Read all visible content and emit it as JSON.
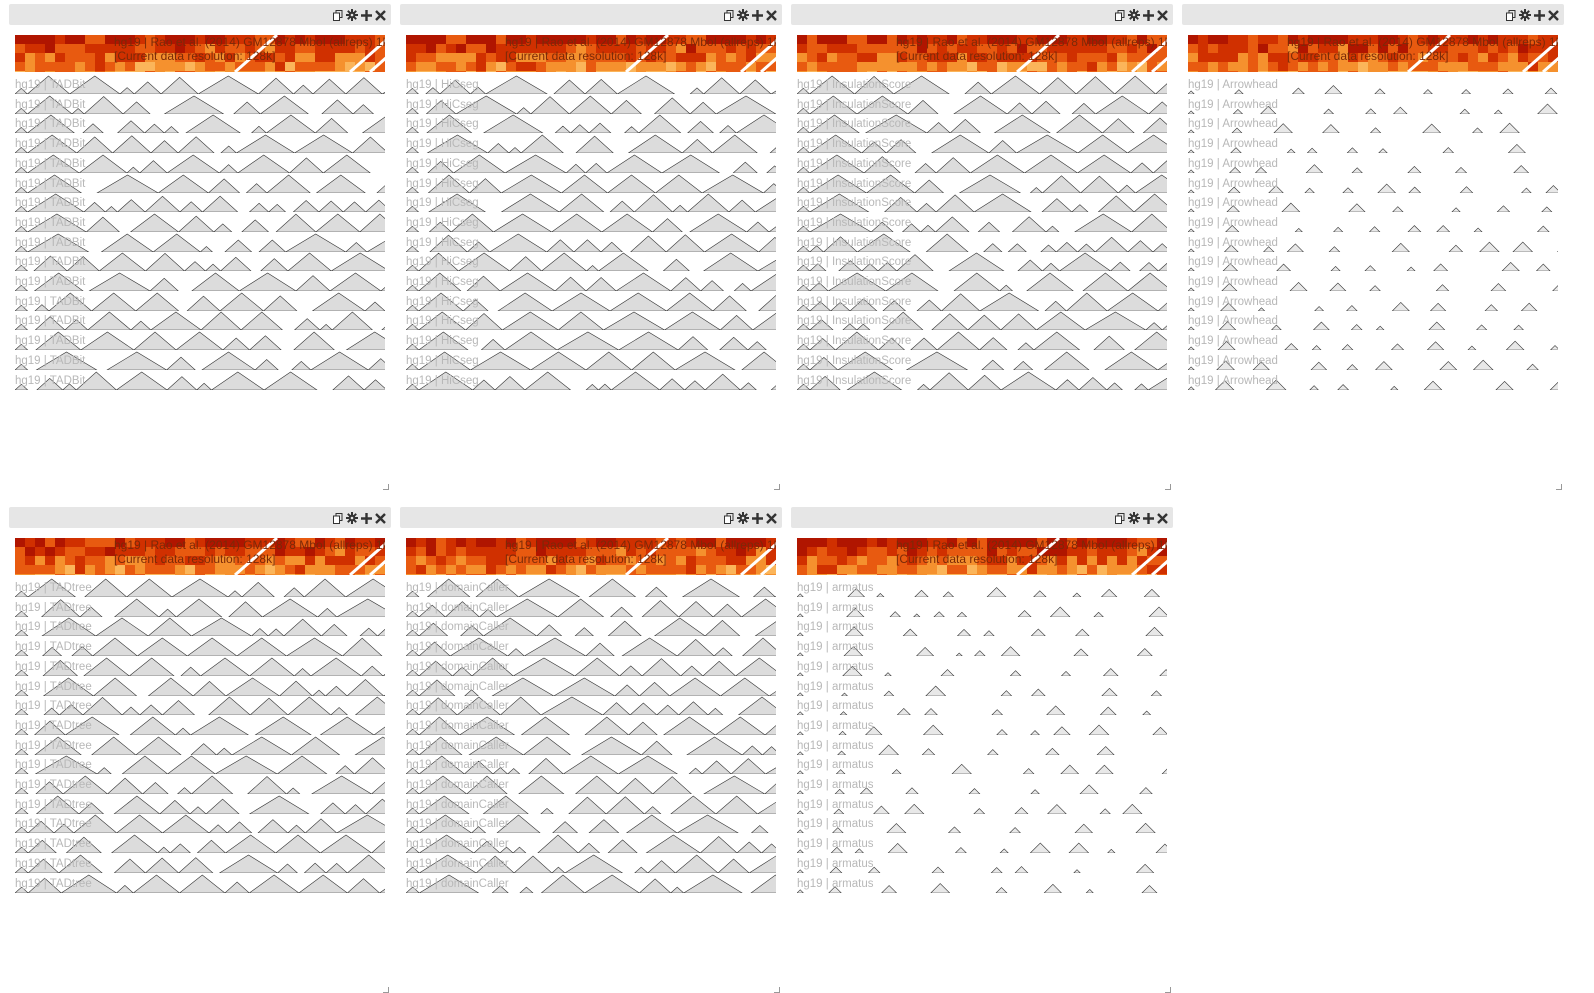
{
  "heatmap": {
    "title": "hg19 | Rao et al. (2014) GM12878 MboI (allreps) 1kb",
    "resolution": "[Current data resolution: 128k]",
    "colors": [
      "#b01500",
      "#d03000",
      "#e85a10",
      "#f5912e",
      "#fbb55a"
    ]
  },
  "toolbar_icons": [
    "copy-icon",
    "gear-icon",
    "plus-icon",
    "close-icon"
  ],
  "views": [
    {
      "id": "tadbit",
      "label": "hg19 | TADBit",
      "track_count": 16,
      "fill": "#dcdcdc"
    },
    {
      "id": "hicseg",
      "label": "hg19 | HiCseg",
      "track_count": 16,
      "fill": "#dcdcdc"
    },
    {
      "id": "insulation",
      "label": "hg19 | InsulationScore",
      "track_count": 16,
      "fill": "#dcdcdc"
    },
    {
      "id": "arrowhead",
      "label": "hg19 | Arrowhead",
      "track_count": 16,
      "fill": "#dcdcdc"
    },
    {
      "id": "tadtree",
      "label": "hg19 | TADtree",
      "track_count": 16,
      "fill": "#dcdcdc"
    },
    {
      "id": "domaincaller",
      "label": "hg19 | domainCaller",
      "track_count": 16,
      "fill": "#dcdcdc"
    },
    {
      "id": "armatus",
      "label": "hg19 | armatus",
      "track_count": 16,
      "fill": "#dcdcdc"
    }
  ]
}
